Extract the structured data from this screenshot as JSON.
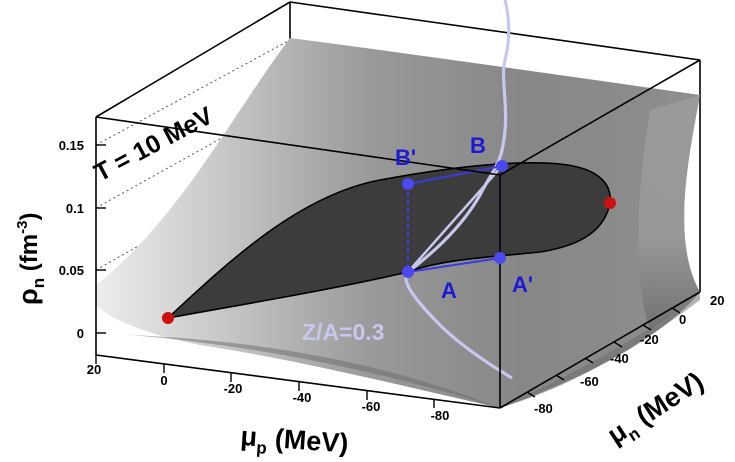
{
  "chart_data": {
    "type": "surface3d",
    "annotation": "T = 10 MeV",
    "xaxis": {
      "label_symbol": "μ",
      "label_sub": "p",
      "label_unit": " (MeV)",
      "ticks": [
        "20",
        "0",
        "-20",
        "-40",
        "-60",
        "-80"
      ],
      "range": [
        20,
        -90
      ]
    },
    "yaxis": {
      "label_symbol": "μ",
      "label_sub": "n",
      "label_unit": " (MeV)",
      "ticks": [
        "20",
        "0",
        "-20",
        "-40",
        "-60",
        "-80"
      ],
      "range": [
        20,
        -90
      ]
    },
    "zaxis": {
      "label_symbol": "ρ",
      "label_sub": "n",
      "label_unit_pre": " (fm",
      "label_sup": "-3",
      "label_unit_post": ")",
      "ticks": [
        "0",
        "0.05",
        "0.1",
        "0.15"
      ],
      "range": [
        0,
        0.17
      ]
    },
    "points": [
      {
        "label": "A",
        "color": "#1b1bd6"
      },
      {
        "label": "A'",
        "color": "#1b1bd6"
      },
      {
        "label": "B",
        "color": "#1b1bd6"
      },
      {
        "label": "B'",
        "color": "#1b1bd6"
      }
    ],
    "curve_label": "Z/A=0.3",
    "colors": {
      "points": "#4a4aee",
      "labels": "#1b1bd6",
      "critical_points": "#cc1111",
      "curve": "#c8c8ee",
      "spinodal_fill": "#3c3c3c"
    }
  }
}
